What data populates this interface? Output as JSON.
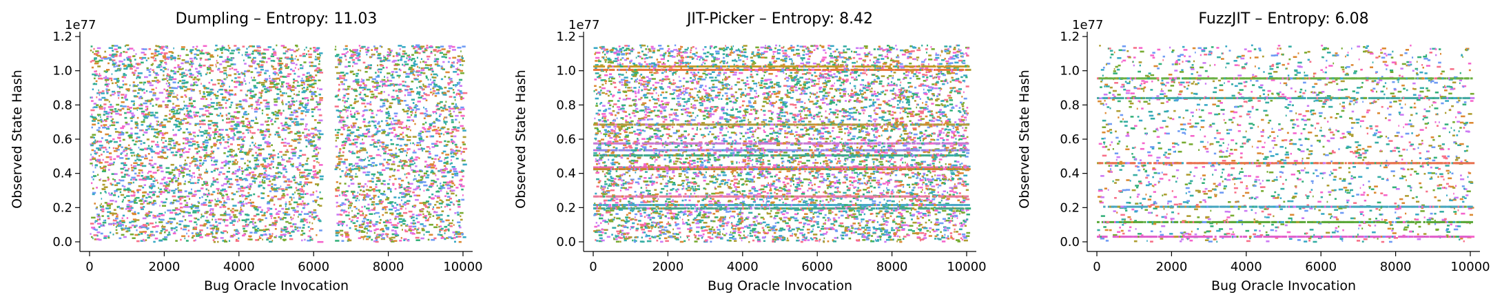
{
  "chart_data": [
    {
      "type": "scatter",
      "title": "Dumpling – Entropy: 11.03",
      "xlabel": "Bug Oracle Invocation",
      "ylabel": "Observed State Hash",
      "y_offset_text": "1e77",
      "xlim": [
        0,
        10000
      ],
      "ylim": [
        0,
        1.2
      ],
      "xticks": [
        "0",
        "2000",
        "4000",
        "6000",
        "8000",
        "10000"
      ],
      "yticks": [
        "0.0",
        "0.2",
        "0.4",
        "0.6",
        "0.8",
        "1.0",
        "1.2"
      ],
      "y_data_max": 1.15,
      "gap_x": [
        6150,
        6550
      ],
      "bands": [],
      "density": 0.9,
      "grid": false
    },
    {
      "type": "scatter",
      "title": "JIT-Picker – Entropy: 8.42",
      "xlabel": "Bug Oracle Invocation",
      "ylabel": "Observed State Hash",
      "y_offset_text": "1e77",
      "xlim": [
        0,
        10000
      ],
      "ylim": [
        0,
        1.2
      ],
      "xticks": [
        "0",
        "2000",
        "4000",
        "6000",
        "8000",
        "10000"
      ],
      "yticks": [
        "0.0",
        "0.2",
        "0.4",
        "0.6",
        "0.8",
        "1.0",
        "1.2"
      ],
      "y_data_max": 1.15,
      "gap_x": [],
      "bands": [
        {
          "y": 1.025,
          "color": "#c59b2a"
        },
        {
          "y": 1.005,
          "color": "#e8763a"
        },
        {
          "y": 0.685,
          "color": "#b59a3c"
        },
        {
          "y": 0.575,
          "color": "#c77ad6"
        },
        {
          "y": 0.535,
          "color": "#8f86e6"
        },
        {
          "y": 0.505,
          "color": "#3ea88c"
        },
        {
          "y": 0.435,
          "color": "#e86aa5"
        },
        {
          "y": 0.425,
          "color": "#c7862f"
        },
        {
          "y": 0.265,
          "color": "#e87b9a"
        },
        {
          "y": 0.215,
          "color": "#49a7c6"
        },
        {
          "y": 0.195,
          "color": "#4aa88a"
        }
      ],
      "density": 1.0,
      "grid": false
    },
    {
      "type": "scatter",
      "title": "FuzzJIT – Entropy: 6.08",
      "xlabel": "Bug Oracle Invocation",
      "ylabel": "Observed State Hash",
      "y_offset_text": "1e77",
      "xlim": [
        0,
        10000
      ],
      "ylim": [
        0,
        1.2
      ],
      "xticks": [
        "0",
        "2000",
        "4000",
        "6000",
        "8000",
        "10000"
      ],
      "yticks": [
        "0.0",
        "0.2",
        "0.4",
        "0.6",
        "0.8",
        "1.0",
        "1.2"
      ],
      "y_data_max": 1.15,
      "gap_x": [],
      "bands": [
        {
          "y": 0.115,
          "color": "#5aa838"
        },
        {
          "y": 0.84,
          "color": "#43a8a0"
        },
        {
          "y": 0.955,
          "color": "#6bb044"
        },
        {
          "y": 0.46,
          "color": "#e8704e"
        },
        {
          "y": 0.205,
          "color": "#47a6c0"
        },
        {
          "y": 0.03,
          "color": "#e060cc"
        }
      ],
      "density": 0.32,
      "grid": false
    }
  ],
  "palette": [
    "#f77189",
    "#dc8932",
    "#ae9d31",
    "#77ab31",
    "#33b07a",
    "#36ada4",
    "#38a9c5",
    "#6e9bf4",
    "#cc7af4",
    "#f565cc"
  ]
}
